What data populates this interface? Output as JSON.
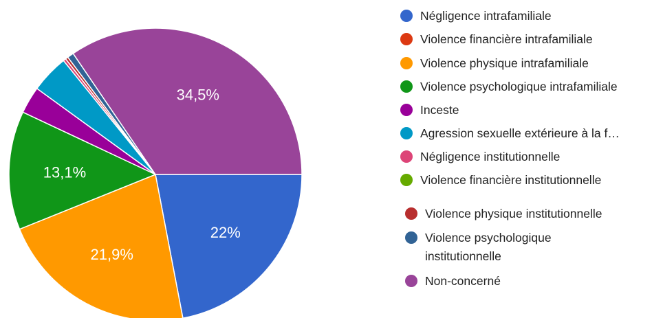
{
  "chart_data": {
    "type": "pie",
    "title": "",
    "slices": [
      {
        "label": "Négligence intrafamiliale",
        "value": 22.0,
        "display": "22%",
        "color": "#3366cc"
      },
      {
        "label": "Violence financière intrafamiliale",
        "value": 0.0,
        "display": "",
        "color": "#dc3912"
      },
      {
        "label": "Violence physique intrafamiliale",
        "value": 21.9,
        "display": "21,9%",
        "color": "#ff9900"
      },
      {
        "label": "Violence psychologique intrafamiliale",
        "value": 13.1,
        "display": "13,1%",
        "color": "#109618"
      },
      {
        "label": "Inceste",
        "value": 3.0,
        "display": "",
        "color": "#990099"
      },
      {
        "label": "Agression sexuelle extérieure à la f…",
        "value": 4.2,
        "display": "",
        "color": "#0099c6"
      },
      {
        "label": "Négligence institutionnelle",
        "value": 0.3,
        "display": "",
        "color": "#dd4477"
      },
      {
        "label": "Violence financière institutionnelle",
        "value": 0.0,
        "display": "",
        "color": "#66aa00"
      },
      {
        "label": "Violence physique institutionnelle",
        "value": 0.3,
        "display": "",
        "color": "#b82e2e"
      },
      {
        "label": "Violence psychologique institutionnelle",
        "value": 0.7,
        "display": "",
        "color": "#316395"
      },
      {
        "label": "Non-concerné",
        "value": 34.5,
        "display": "34,5%",
        "color": "#994499"
      }
    ],
    "legend_position": "right"
  }
}
